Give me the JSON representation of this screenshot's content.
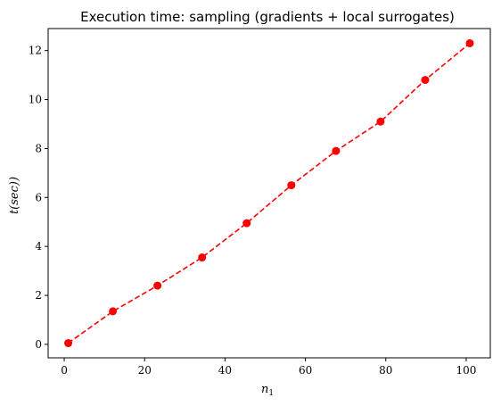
{
  "chart_data": {
    "type": "line",
    "title": "Execution time: sampling (gradients + local surrogates)",
    "xlabel": "n",
    "xlabel_subscript": "1",
    "ylabel": "t(sec))",
    "xlim": [
      -4,
      106
    ],
    "ylim": [
      -0.55,
      12.9
    ],
    "xticks": [
      0,
      20,
      40,
      60,
      80,
      100
    ],
    "yticks": [
      0,
      2,
      4,
      6,
      8,
      10,
      12
    ],
    "grid": false,
    "legend": "none",
    "series": [
      {
        "color": "#ff0000",
        "line_style": "dashed",
        "marker": "circle",
        "x": [
          1,
          12.1,
          23.2,
          34.3,
          45.4,
          56.5,
          67.6,
          78.7,
          89.8,
          100.9
        ],
        "y": [
          0.05,
          1.35,
          2.4,
          3.55,
          4.95,
          6.5,
          7.9,
          9.1,
          10.8,
          12.3
        ]
      }
    ]
  }
}
